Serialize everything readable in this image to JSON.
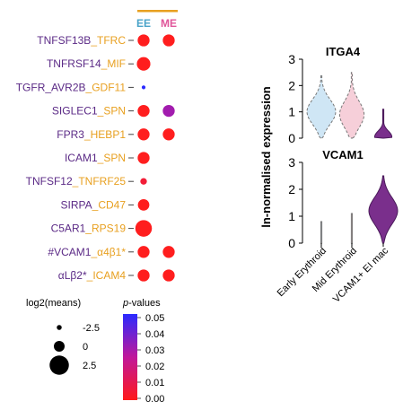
{
  "colors": {
    "pair_first": "#5b2a86",
    "pair_second": "#e8a020",
    "separator": "#444444",
    "header_bar": "#e8a020",
    "col_ee": "#4aa3c8",
    "col_me": "#e0569a",
    "dot_red": "#f0332a",
    "dot_blue": "#2828c8",
    "dot_violet": "#8a2be2",
    "violin_early": "#cfe6f5",
    "violin_mid": "#f6cfd9",
    "violin_vcam": "#7a2f8c"
  },
  "chart_data": [
    {
      "type": "scatter",
      "columns": [
        "EE",
        "ME"
      ],
      "rows": [
        {
          "first": "TNFSF13B",
          "sep": "_",
          "second": "TFRC",
          "cells": [
            {
              "col": "EE",
              "log2_mean": 0.5,
              "p_value": 0.0
            },
            {
              "col": "ME",
              "log2_mean": 0.5,
              "p_value": 0.0
            }
          ]
        },
        {
          "first": "TNFRSF14",
          "sep": "_",
          "second": "MIF",
          "cells": [
            {
              "col": "EE",
              "log2_mean": 1.2,
              "p_value": 0.0
            }
          ]
        },
        {
          "first": "TGFR_AVR2B",
          "sep": "_",
          "second": "GDF11",
          "cells": [
            {
              "col": "EE",
              "log2_mean": -3.0,
              "p_value": 0.05
            }
          ]
        },
        {
          "first": "SIGLEC1",
          "sep": "_",
          "second": "SPN",
          "cells": [
            {
              "col": "EE",
              "log2_mean": 0.5,
              "p_value": 0.0
            },
            {
              "col": "ME",
              "log2_mean": 0.5,
              "p_value": 0.03
            }
          ]
        },
        {
          "first": "FPR3",
          "sep": "_",
          "second": "HEBP1",
          "cells": [
            {
              "col": "EE",
              "log2_mean": 0.5,
              "p_value": 0.0
            },
            {
              "col": "ME",
              "log2_mean": 0.5,
              "p_value": 0.0
            }
          ]
        },
        {
          "first": "ICAM1",
          "sep": "_",
          "second": "SPN",
          "cells": [
            {
              "col": "EE",
              "log2_mean": 0.5,
              "p_value": 0.0
            }
          ]
        },
        {
          "first": "TNFSF12",
          "sep": "_",
          "second": "TNFRF25",
          "cells": [
            {
              "col": "EE",
              "log2_mean": -1.8,
              "p_value": 0.005
            }
          ]
        },
        {
          "first": "SIRPA",
          "sep": "_",
          "second": "CD47",
          "cells": [
            {
              "col": "EE",
              "log2_mean": 0.3,
              "p_value": 0.0
            }
          ]
        },
        {
          "first": "C5AR1",
          "sep": "_",
          "second": "RPS19",
          "cells": [
            {
              "col": "EE",
              "log2_mean": 2.5,
              "p_value": 0.0
            }
          ]
        },
        {
          "first": "#VCAM1",
          "sep": "_",
          "second": "α4β1*",
          "cells": [
            {
              "col": "EE",
              "log2_mean": 0.5,
              "p_value": 0.0
            },
            {
              "col": "ME",
              "log2_mean": 0.5,
              "p_value": 0.0
            }
          ]
        },
        {
          "first": "αLβ2*",
          "sep": "_",
          "second": "ICAM4",
          "cells": [
            {
              "col": "EE",
              "log2_mean": 0.5,
              "p_value": 0.0
            },
            {
              "col": "ME",
              "log2_mean": 0.5,
              "p_value": 0.0
            }
          ]
        }
      ],
      "size_legend": {
        "title": "log2(means)",
        "values": [
          -2.5,
          0,
          2.5
        ],
        "labels": [
          "-2.5",
          "0",
          "2.5"
        ]
      },
      "color_legend": {
        "title_italic": "p",
        "title_rest": "-values",
        "range": [
          0.0,
          0.05
        ],
        "ticks": [
          "0.05",
          "0.04",
          "0.03",
          "0.02",
          "0.01",
          "0.00"
        ]
      }
    },
    {
      "type": "violin",
      "ylabel": "ln-normalised expression",
      "categories": [
        "Early Erythroid",
        "Mid Erythroid",
        "VCAM1+ EI mac"
      ],
      "panels": [
        {
          "title": "ITGA4",
          "ylim": [
            0,
            3
          ],
          "ticks": [
            "0",
            "1",
            "2",
            "3"
          ],
          "violins": [
            {
              "category": "Early Erythroid",
              "min": 0.0,
              "max": 2.4,
              "mode": 1.0,
              "width": 1.0
            },
            {
              "category": "Mid Erythroid",
              "min": 0.0,
              "max": 2.5,
              "mode": 0.9,
              "width": 0.85
            },
            {
              "category": "VCAM1+ EI mac",
              "min": 0.0,
              "max": 1.1,
              "mode": 0.05,
              "width": 0.6
            }
          ]
        },
        {
          "title": "VCAM1",
          "ylim": [
            0,
            3
          ],
          "ticks": [
            "0",
            "1",
            "2",
            "3"
          ],
          "violins": [
            {
              "category": "Early Erythroid",
              "min": 0.0,
              "max": 0.8,
              "mode": 0.0,
              "width": 0.02
            },
            {
              "category": "Mid Erythroid",
              "min": 0.0,
              "max": 1.1,
              "mode": 0.0,
              "width": 0.02
            },
            {
              "category": "VCAM1+ EI mac",
              "min": 0.0,
              "max": 2.5,
              "mode": 1.2,
              "width": 1.0
            }
          ]
        }
      ]
    }
  ]
}
